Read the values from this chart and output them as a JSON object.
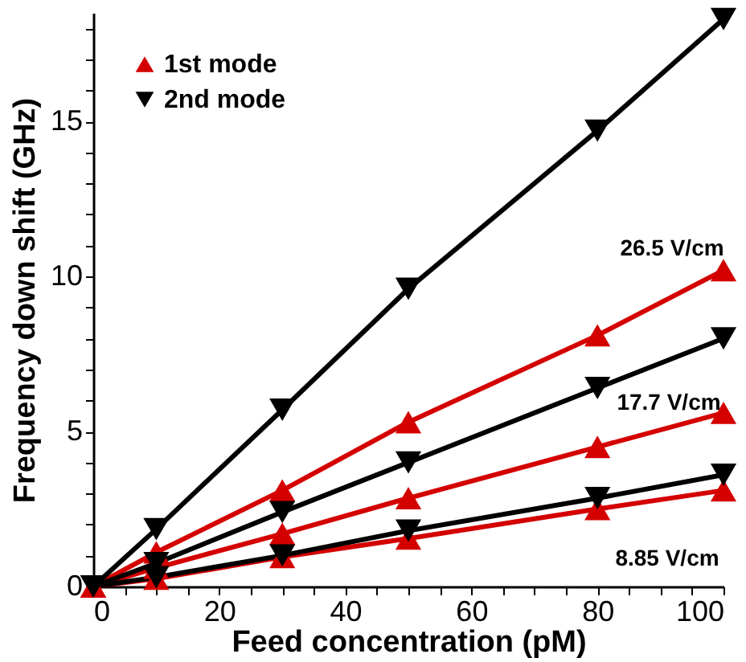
{
  "chart_data": {
    "type": "line",
    "xlabel": "Feed concentration (pM)",
    "ylabel": "Frequency down shift (GHz)",
    "xlim": [
      0,
      100
    ],
    "ylim": [
      0,
      18.5
    ],
    "xticks": [
      0,
      {
        "value": 5,
        "label": null
      },
      {
        "value": 10,
        "label": null
      },
      {
        "value": 15,
        "label": null
      },
      20,
      {
        "value": 25,
        "label": null
      },
      {
        "value": 30,
        "label": null
      },
      {
        "value": 35,
        "label": null
      },
      40,
      {
        "value": 45,
        "label": null
      },
      {
        "value": 50,
        "label": null
      },
      {
        "value": 55,
        "label": null
      },
      60,
      {
        "value": 65,
        "label": null
      },
      {
        "value": 70,
        "label": null
      },
      {
        "value": 75,
        "label": null
      },
      80,
      {
        "value": 85,
        "label": null
      },
      {
        "value": 90,
        "label": null
      },
      {
        "value": 95,
        "label": null
      },
      100
    ],
    "yticks": [
      0,
      {
        "value": 1,
        "label": null
      },
      {
        "value": 2,
        "label": null
      },
      {
        "value": 3,
        "label": null
      },
      {
        "value": 4,
        "label": null
      },
      5,
      {
        "value": 6,
        "label": null
      },
      {
        "value": 7,
        "label": null
      },
      {
        "value": 8,
        "label": null
      },
      {
        "value": 9,
        "label": null
      },
      10,
      {
        "value": 11,
        "label": null
      },
      {
        "value": 12,
        "label": null
      },
      {
        "value": 13,
        "label": null
      },
      {
        "value": 14,
        "label": null
      },
      15,
      {
        "value": 16,
        "label": null
      },
      {
        "value": 17,
        "label": null
      },
      {
        "value": 18,
        "label": null
      }
    ],
    "x": [
      0,
      10,
      30,
      50,
      80,
      100
    ],
    "series": [
      {
        "name": "1st mode",
        "color": "#d40000",
        "marker": "triangle",
        "values": [
          0,
          1.1,
          3.1,
          5.3,
          8.1,
          10.2
        ]
      },
      {
        "name": "2nd mode",
        "color": "#000000",
        "marker": "triangle-down",
        "values": [
          0,
          1.85,
          5.7,
          9.6,
          14.7,
          18.3
        ]
      },
      {
        "color": "#d40000",
        "marker": "triangle",
        "values": [
          0,
          0.6,
          1.7,
          2.85,
          4.5,
          5.6
        ]
      },
      {
        "color": "#000000",
        "marker": "triangle-down",
        "values": [
          0,
          0.75,
          2.4,
          4.0,
          6.4,
          8.0
        ]
      },
      {
        "color": "#d40000",
        "marker": "triangle",
        "values": [
          0,
          0.25,
          0.95,
          1.55,
          2.5,
          3.1
        ]
      },
      {
        "color": "#000000",
        "marker": "triangle-down",
        "values": [
          0,
          0.3,
          1.0,
          1.8,
          2.85,
          3.6
        ]
      }
    ],
    "annotations": [
      "26.5 V/cm",
      "17.7 V/cm",
      "8.85 V/cm"
    ],
    "legend": "top left",
    "grid": false,
    "line_style": "solid"
  }
}
